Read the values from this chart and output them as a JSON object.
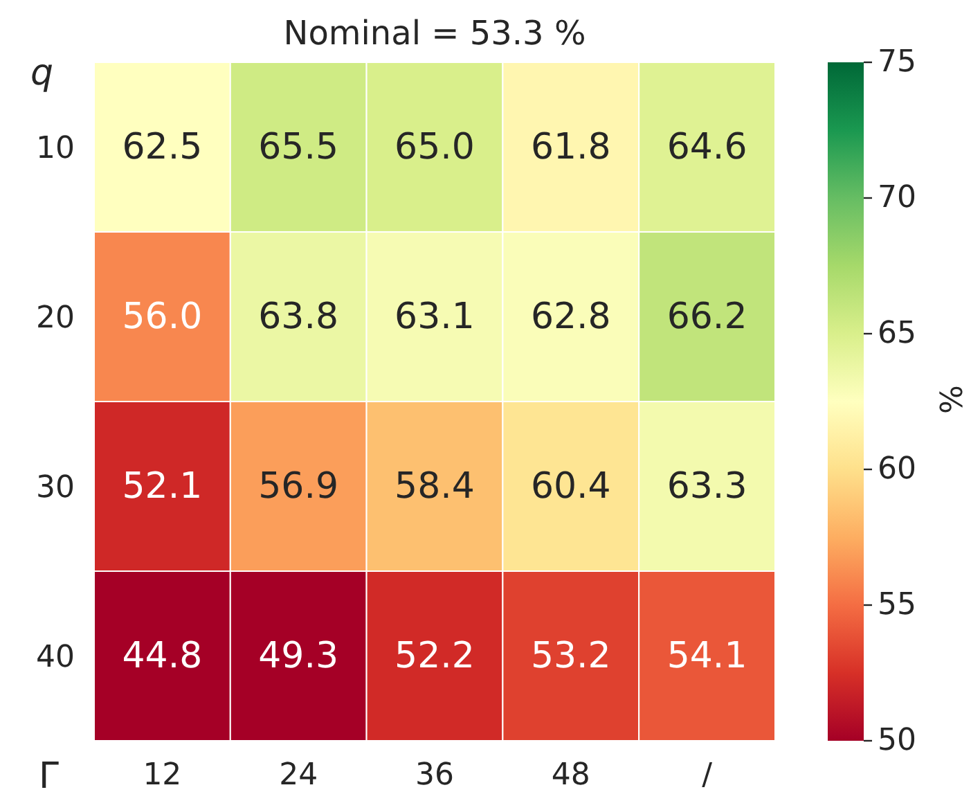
{
  "chart_data": {
    "type": "heatmap",
    "title": "Nominal = 53.3 %",
    "xlabel": "Γ",
    "ylabel": "q",
    "clabel": "%",
    "categories": [
      "12",
      "24",
      "36",
      "48",
      "/"
    ],
    "y_categories": [
      "10",
      "20",
      "30",
      "40"
    ],
    "cells": [
      [
        62.5,
        65.5,
        65.0,
        61.8,
        64.6
      ],
      [
        56.0,
        63.8,
        63.1,
        62.8,
        66.2
      ],
      [
        52.1,
        56.9,
        58.4,
        60.4,
        63.3
      ],
      [
        44.8,
        49.3,
        52.2,
        53.2,
        54.1
      ]
    ],
    "cell_labels": [
      [
        "62.5",
        "65.5",
        "65.0",
        "61.8",
        "64.6"
      ],
      [
        "56.0",
        "63.8",
        "63.1",
        "62.8",
        "66.2"
      ],
      [
        "52.1",
        "56.9",
        "58.4",
        "60.4",
        "63.3"
      ],
      [
        "44.8",
        "49.3",
        "52.2",
        "53.2",
        "54.1"
      ]
    ],
    "clim": [
      50,
      75
    ],
    "cticks": [
      50,
      55,
      60,
      65,
      70,
      75
    ],
    "data_labels": true
  }
}
